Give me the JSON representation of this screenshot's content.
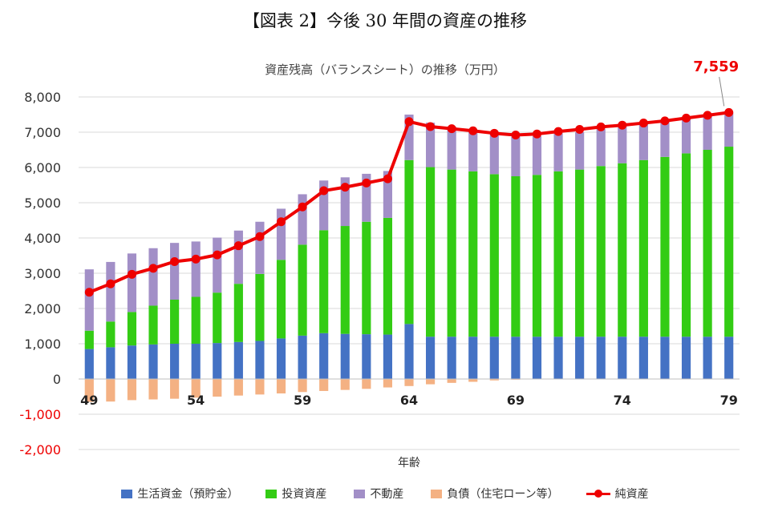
{
  "figure_title": "【図表 2】今後 30 年間の資産の推移",
  "chart_data": {
    "type": "bar",
    "stacked": true,
    "title": "資産残高（バランスシート）の推移（万円）",
    "xlabel": "年齢",
    "ylabel": "",
    "ylim": [
      -2000,
      8000
    ],
    "yticks": [
      8000,
      7000,
      6000,
      5000,
      4000,
      3000,
      2000,
      1000,
      0,
      -1000,
      -2000
    ],
    "ytick_labels": [
      "8,000",
      "7,000",
      "6,000",
      "5,000",
      "4,000",
      "3,000",
      "2,000",
      "1,000",
      "0",
      "-1,000",
      "-2,000"
    ],
    "x": [
      49,
      50,
      51,
      52,
      53,
      54,
      55,
      56,
      57,
      58,
      59,
      60,
      61,
      62,
      63,
      64,
      65,
      66,
      67,
      68,
      69,
      70,
      71,
      72,
      73,
      74,
      75,
      76,
      77,
      78,
      79
    ],
    "x_tick_labels": {
      "49": "49",
      "54": "54",
      "59": "59",
      "64": "64",
      "69": "69",
      "74": "74",
      "79": "79"
    },
    "grid": true,
    "legend_position": "bottom",
    "series": [
      {
        "name": "生活資金（預貯金）",
        "kind": "bar",
        "color": "#4472c4",
        "values": [
          850,
          900,
          950,
          980,
          1000,
          1000,
          1020,
          1050,
          1080,
          1150,
          1230,
          1300,
          1280,
          1270,
          1260,
          1560,
          1200,
          1200,
          1200,
          1200,
          1200,
          1200,
          1200,
          1200,
          1200,
          1200,
          1200,
          1200,
          1200,
          1200,
          1200
        ]
      },
      {
        "name": "投資資産",
        "kind": "bar",
        "color": "#33cc14",
        "values": [
          520,
          730,
          950,
          1100,
          1250,
          1330,
          1430,
          1650,
          1900,
          2230,
          2580,
          2920,
          3060,
          3190,
          3310,
          4650,
          4810,
          4740,
          4690,
          4610,
          4550,
          4590,
          4690,
          4740,
          4840,
          4920,
          5010,
          5100,
          5200,
          5300,
          5390
        ]
      },
      {
        "name": "不動産",
        "kind": "bar",
        "color": "#a28fc7",
        "values": [
          1740,
          1690,
          1660,
          1630,
          1610,
          1570,
          1560,
          1510,
          1480,
          1450,
          1430,
          1410,
          1380,
          1360,
          1330,
          1290,
          1260,
          1220,
          1180,
          1150,
          1120,
          1100,
          1080,
          1060,
          1050,
          1040,
          1030,
          1020,
          1000,
          990,
          970
        ]
      },
      {
        "name": "負債（住宅ローン等）",
        "kind": "bar",
        "color": "#f4b183",
        "values": [
          -650,
          -640,
          -600,
          -580,
          -560,
          -530,
          -500,
          -470,
          -440,
          -410,
          -370,
          -340,
          -310,
          -280,
          -240,
          -200,
          -150,
          -110,
          -80,
          -40,
          -20,
          -10,
          0,
          0,
          0,
          0,
          0,
          0,
          0,
          0,
          0
        ]
      },
      {
        "name": "純資産",
        "kind": "line",
        "color": "#ee0000",
        "values": [
          2460,
          2700,
          2970,
          3140,
          3330,
          3400,
          3520,
          3780,
          4040,
          4460,
          4880,
          5340,
          5440,
          5560,
          5680,
          7300,
          7160,
          7100,
          7040,
          6970,
          6920,
          6950,
          7020,
          7080,
          7150,
          7200,
          7260,
          7320,
          7400,
          7480,
          7559
        ]
      }
    ],
    "annotation": {
      "label": "7,559",
      "x": 79,
      "y": 7559,
      "color": "#ee0000"
    }
  }
}
